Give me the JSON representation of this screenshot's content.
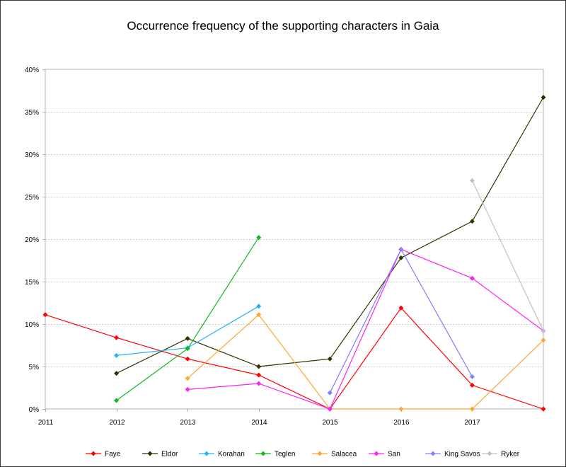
{
  "chart_data": {
    "type": "line",
    "title": "Occurrence frequency of the supporting characters in Gaia",
    "xlabel": "",
    "ylabel": "",
    "x": [
      2011,
      2012,
      2013,
      2014,
      2015,
      2016,
      2017,
      2018
    ],
    "x_tick_labels": [
      "2011",
      "2012",
      "2013",
      "2014",
      "2015",
      "2016",
      "2017",
      ""
    ],
    "ylim": [
      0,
      40
    ],
    "y_ticks": [
      0,
      5,
      10,
      15,
      20,
      25,
      30,
      35,
      40
    ],
    "y_tick_labels": [
      "0%",
      "5%",
      "10%",
      "15%",
      "20%",
      "25%",
      "30%",
      "35%",
      "40%"
    ],
    "grid": "horizontal",
    "legend_position": "bottom",
    "series": [
      {
        "name": "Faye",
        "color": "#ff0000",
        "values": [
          11.1,
          8.4,
          5.9,
          4.0,
          0.0,
          11.9,
          2.8,
          0.0
        ]
      },
      {
        "name": "Eldor",
        "color": "#333300",
        "values": [
          null,
          4.2,
          8.3,
          5.0,
          5.9,
          17.8,
          22.1,
          36.7
        ]
      },
      {
        "name": "Korahan",
        "color": "#1fb5f0",
        "values": [
          null,
          6.3,
          7.2,
          12.1,
          null,
          null,
          null,
          null
        ]
      },
      {
        "name": "Teglen",
        "color": "#12b81f",
        "values": [
          null,
          1.0,
          7.1,
          20.2,
          null,
          null,
          null,
          null
        ]
      },
      {
        "name": "Salacea",
        "color": "#ffa531",
        "values": [
          null,
          null,
          3.6,
          11.1,
          0.0,
          0.0,
          0.0,
          8.1
        ]
      },
      {
        "name": "San",
        "color": "#ff22f2",
        "values": [
          null,
          null,
          2.3,
          3.0,
          0.0,
          18.8,
          15.4,
          9.2
        ]
      },
      {
        "name": "King Savos",
        "color": "#7f7fff",
        "values": [
          null,
          null,
          null,
          null,
          1.9,
          18.8,
          3.8,
          null
        ]
      },
      {
        "name": "Ryker",
        "color": "#c0c0c0",
        "values": [
          null,
          null,
          null,
          null,
          null,
          null,
          26.9,
          9.2
        ]
      }
    ]
  }
}
